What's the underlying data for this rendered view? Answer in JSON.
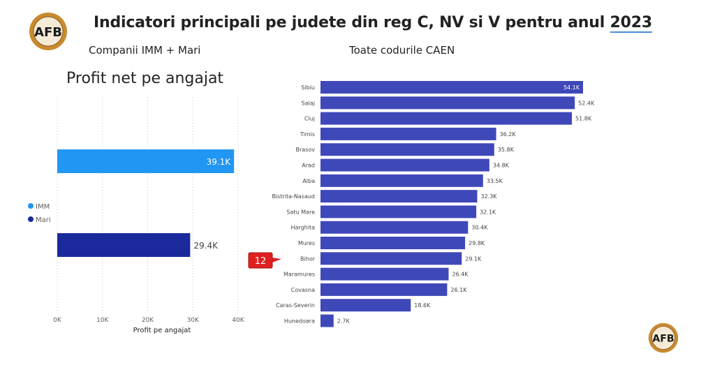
{
  "header": {
    "title_main": "Indicatori principali pe judete din reg C, NV si V pentru anul",
    "title_year": "2023",
    "subtitle_left": "Companii IMM + Mari",
    "subtitle_right": "Toate codurile CAEN"
  },
  "logo": {
    "text": "AFB"
  },
  "callout": {
    "label": "12",
    "color": "#e02020"
  },
  "colors": {
    "imm": "#2196f3",
    "mari": "#1a2a9c",
    "bars": "#3f48b8"
  },
  "chart_data": [
    {
      "type": "bar",
      "orientation": "horizontal",
      "title": "Profit net pe angajat",
      "xlabel": "Profit pe angajat",
      "xlim": [
        0,
        40000
      ],
      "ticks": [
        "0K",
        "10K",
        "20K",
        "30K",
        "40K"
      ],
      "legend_position": "left",
      "grid": true,
      "categories": [
        "IMM",
        "Mari"
      ],
      "values": [
        39100,
        29400
      ],
      "labels": [
        "39.1K",
        "29.4K"
      ]
    },
    {
      "type": "bar",
      "orientation": "horizontal",
      "xlim": [
        0,
        60000
      ],
      "grid": false,
      "categories": [
        "Sibiu",
        "Salaj",
        "Cluj",
        "Timis",
        "Brasov",
        "Arad",
        "Alba",
        "Bistrita-Nasaud",
        "Satu Mare",
        "Harghita",
        "Mures",
        "Bihor",
        "Maramures",
        "Covasna",
        "Caras-Severin",
        "Hunedoara"
      ],
      "values": [
        54100,
        52400,
        51800,
        36200,
        35800,
        34800,
        33500,
        32300,
        32100,
        30400,
        29800,
        29100,
        26400,
        26100,
        18600,
        2700
      ],
      "labels": [
        "54.1K",
        "52.4K",
        "51.8K",
        "36.2K",
        "35.8K",
        "34.8K",
        "33.5K",
        "32.3K",
        "32.1K",
        "30.4K",
        "29.8K",
        "29.1K",
        "26.4K",
        "26.1K",
        "18.6K",
        "2.7K"
      ]
    }
  ]
}
